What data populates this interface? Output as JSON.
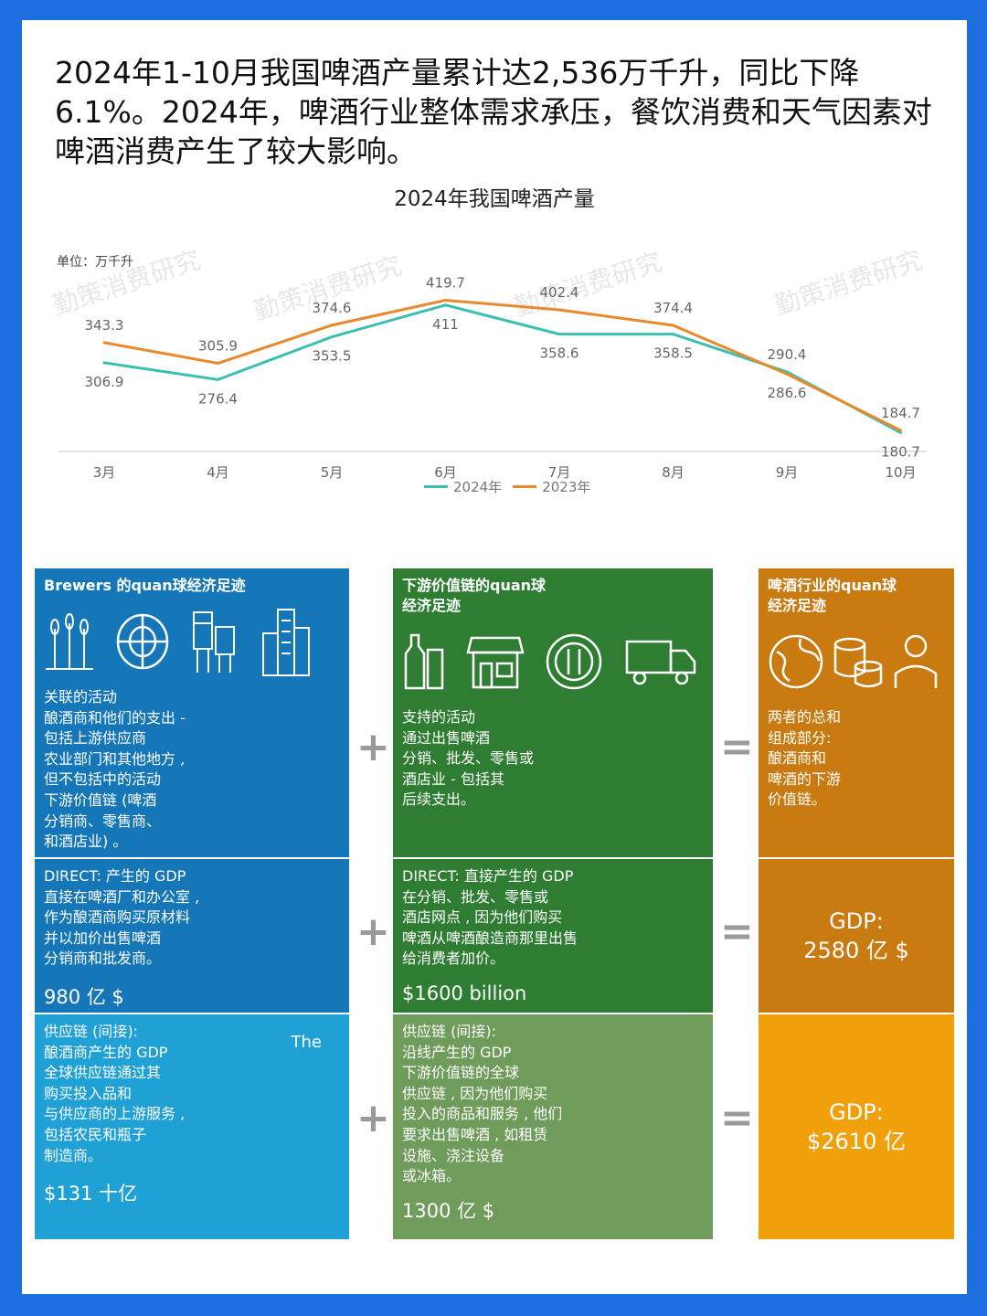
{
  "headline": "2024年1-10月我国啤酒产量累计达2,536万千升，同比下降6.1%。2024年，啤酒行业整体需求承压，餐饮消费和天气因素对啤酒消费产生了较大影响。",
  "chart_title": "2024年我国啤酒产量",
  "unit_label": "单位：万千升",
  "watermark": "勤策消费研究",
  "colors": {
    "s2024": "#3bbfb1",
    "s2023": "#e8892c",
    "blue1": "#1577b8",
    "blue2": "#1577b8",
    "blue3": "#1fa1d6",
    "green1": "#2e7d32",
    "green2": "#2e7d32",
    "green3": "#6f9c5a",
    "orange1": "#c97a10",
    "orange2": "#c97a10",
    "orange3": "#f0a00a"
  },
  "chart_data": {
    "type": "line",
    "categories": [
      "3月",
      "4月",
      "5月",
      "6月",
      "7月",
      "8月",
      "9月",
      "10月"
    ],
    "series": [
      {
        "name": "2024年",
        "values": [
          306.9,
          276.4,
          353.5,
          411,
          358.6,
          358.5,
          290.4,
          180.7
        ]
      },
      {
        "name": "2023年",
        "values": [
          343.3,
          305.9,
          374.6,
          419.7,
          402.4,
          374.4,
          286.6,
          184.7
        ]
      }
    ],
    "ylim": [
      150,
      480
    ],
    "legend": [
      "2024年",
      "2023年"
    ]
  },
  "grid": {
    "col1": {
      "r1_head": "Brewers 的quan球经济足迹",
      "r1_body": "关联的活动\n酿酒商和他们的支出 -\n包括上游供应商\n农业部门和其他地方 ,\n但不包括中的活动\n下游价值链 (啤酒\n分销商、零售商、\n和酒店业) 。",
      "r2_body": "DIRECT: 产生的 GDP\n直接在啤酒厂和办公室 ,\n作为酿酒商购买原材料\n并以加价出售啤酒\n分销商和批发商。",
      "r2_val": "980 亿 $",
      "r3_body": "供应链 (间接):\n酿酒商产生的 GDP\n全球供应链通过其\n购买投入品和\n与供应商的上游服务 ,\n包括农民和瓶子\n制造商。",
      "r3_extra": "The",
      "r3_val": "$131 十亿"
    },
    "col2": {
      "r1_head": "下游价值链的quan球\n经济足迹",
      "r1_body": "支持的活动\n通过出售啤酒\n分销、批发、零售或\n酒店业 - 包括其\n后续支出。",
      "r2_body": "DIRECT: 直接产生的 GDP\n在分销、批发、零售或\n酒店网点 , 因为他们购买\n啤酒从啤酒酿造商那里出售\n给消费者加价。",
      "r2_val": "$1600 billion",
      "r3_body": "供应链 (间接):\n沿线产生的 GDP\n下游价值链的全球\n供应链 , 因为他们购买\n投入的商品和服务 , 他们\n要求出售啤酒 , 如租赁\n设施、浇注设备\n或冰箱。",
      "r3_val": "1300 亿 $"
    },
    "col3": {
      "r1_head": "啤酒行业的quan球\n经济足迹",
      "r1_body": "两者的总和\n组成部分:\n酿酒商和\n啤酒的下游\n价值链。",
      "r2_val": "GDP:\n2580 亿 $",
      "r3_val": "GDP:\n$2610 亿"
    },
    "plus": "+",
    "equals": "="
  }
}
